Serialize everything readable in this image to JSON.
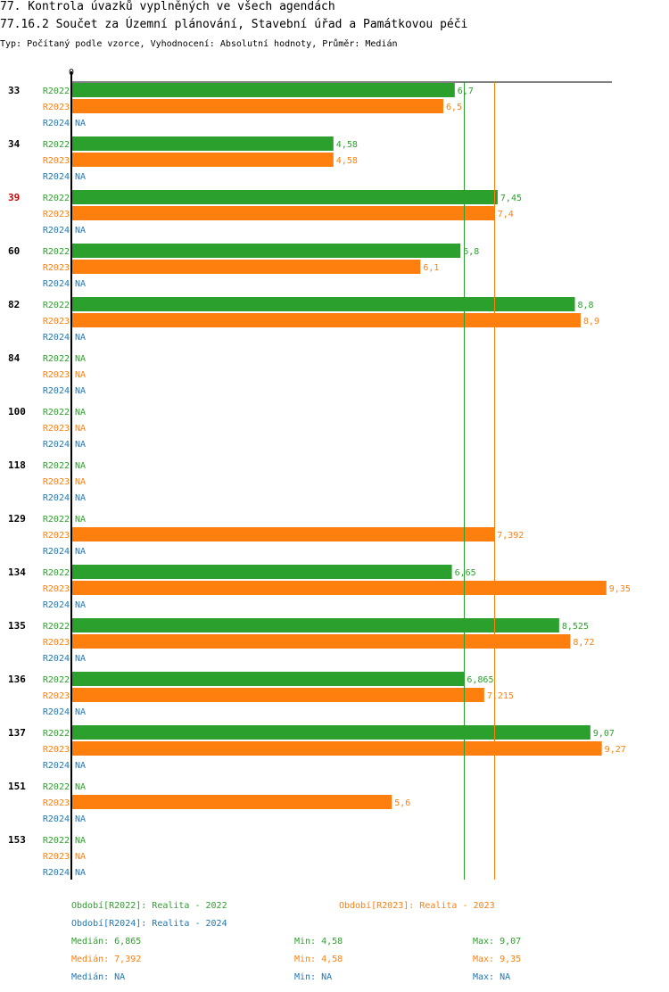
{
  "header": {
    "title": "77. Kontrola úvazků vyplněných ve všech agendách",
    "subtitle": "77.16.2 Součet za Územní plánování, Stavební úřad a Památkovou péči",
    "type_line": "Typ: Počítaný podle vzorce, Vyhodnocení: Absolutní hodnoty, Průměr: Medián"
  },
  "chart_data": {
    "type": "bar",
    "orientation": "horizontal",
    "axis_zero_label": "0",
    "xlim": [
      0,
      9.35
    ],
    "na_label": "NA",
    "categories": [
      "33",
      "34",
      "39",
      "60",
      "82",
      "84",
      "100",
      "118",
      "129",
      "134",
      "135",
      "136",
      "137",
      "151",
      "153"
    ],
    "highlight_category": "39",
    "series": [
      {
        "name": "R2022",
        "color": "#2ca02c",
        "values": [
          6.7,
          4.58,
          7.45,
          6.8,
          8.8,
          null,
          null,
          null,
          null,
          6.65,
          8.525,
          6.865,
          9.07,
          null,
          null
        ],
        "labels": [
          "6,7",
          "4,58",
          "7,45",
          "6,8",
          "8,8",
          null,
          null,
          null,
          null,
          "6,65",
          "8,525",
          "6,865",
          "9,07",
          null,
          null
        ]
      },
      {
        "name": "R2023",
        "color": "#ff7f0e",
        "values": [
          6.5,
          4.58,
          7.4,
          6.1,
          8.9,
          null,
          null,
          null,
          7.392,
          9.35,
          8.72,
          7.215,
          9.27,
          5.6,
          null
        ],
        "labels": [
          "6,5",
          "4,58",
          "7,4",
          "6,1",
          "8,9",
          null,
          null,
          null,
          "7,392",
          "9,35",
          "8,72",
          "7,215",
          "9,27",
          "5,6",
          null
        ]
      },
      {
        "name": "R2024",
        "color": "#1f77b4",
        "values": [
          null,
          null,
          null,
          null,
          null,
          null,
          null,
          null,
          null,
          null,
          null,
          null,
          null,
          null,
          null
        ],
        "labels": [
          null,
          null,
          null,
          null,
          null,
          null,
          null,
          null,
          null,
          null,
          null,
          null,
          null,
          null,
          null
        ]
      }
    ],
    "median_lines": [
      {
        "series": "R2022",
        "value": 6.865,
        "color": "#2ca02c"
      },
      {
        "series": "R2023",
        "value": 7.392,
        "color": "#ff7f0e"
      }
    ]
  },
  "legend": {
    "periods": [
      {
        "text": "Období[R2022]: Realita - 2022",
        "color": "#2ca02c"
      },
      {
        "text": "Období[R2023]: Realita - 2023",
        "color": "#ff7f0e"
      },
      {
        "text": "Období[R2024]: Realita - 2024",
        "color": "#1f77b4"
      }
    ],
    "stats": [
      {
        "median": "Medián: 6,865",
        "min": "Min: 4,58",
        "max": "Max: 9,07",
        "color": "#2ca02c"
      },
      {
        "median": "Medián: 7,392",
        "min": "Min: 4,58",
        "max": "Max: 9,35",
        "color": "#ff7f0e"
      },
      {
        "median": "Medián: NA",
        "min": "Min: NA",
        "max": "Max: NA",
        "color": "#1f77b4"
      }
    ]
  }
}
